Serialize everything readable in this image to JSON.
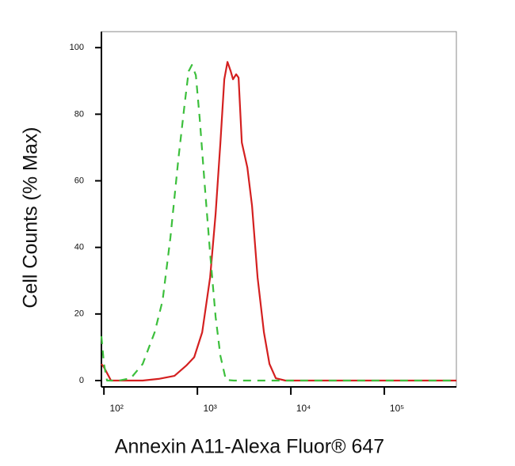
{
  "chart_data": {
    "type": "line",
    "xlabel": "Annexin A11-Alexa Fluor® 647",
    "ylabel": "Cell Counts (% Max)",
    "xscale": "log",
    "xlim": [
      94,
      590000
    ],
    "ylim": [
      -1.9,
      104.8
    ],
    "xticks": [
      {
        "value": 100,
        "label": "10²"
      },
      {
        "value": 1000,
        "label": "10³"
      },
      {
        "value": 10000,
        "label": "10⁴"
      },
      {
        "value": 100000,
        "label": "10⁵"
      }
    ],
    "yticks": [
      0,
      20,
      40,
      60,
      80,
      100
    ],
    "series": [
      {
        "color": "#d42020",
        "dash": false,
        "x": [
          94,
          100,
          119,
          260,
          385,
          568,
          760,
          925,
          1125,
          1368,
          1567,
          1762,
          1942,
          2099,
          2270,
          2406,
          2600,
          2758,
          2985,
          3423,
          3846,
          4408,
          5152,
          5905,
          6899,
          8730,
          590000
        ],
        "values": [
          5,
          4,
          0,
          0,
          0.5,
          1.4,
          4.5,
          7,
          14.5,
          31,
          50,
          71.5,
          90.5,
          95.7,
          93,
          90.5,
          92,
          91,
          71.5,
          64,
          52.5,
          31,
          14.5,
          5,
          0.7,
          0,
          0
        ]
      },
      {
        "color": "#3cbf3c",
        "dash": true,
        "x": [
          94,
          100,
          108,
          145,
          194,
          260,
          349,
          424,
          515,
          627,
          732,
          807,
          873,
          962,
          1060,
          1191,
          1368,
          1567,
          1762,
          2018,
          2452,
          590000
        ],
        "values": [
          13.3,
          5,
          0,
          0,
          0.7,
          5,
          14.5,
          24,
          43,
          66.7,
          83.4,
          92.9,
          94.8,
          91.7,
          78.6,
          59.6,
          38.2,
          19.2,
          7.4,
          0.2,
          0,
          0
        ]
      }
    ]
  }
}
